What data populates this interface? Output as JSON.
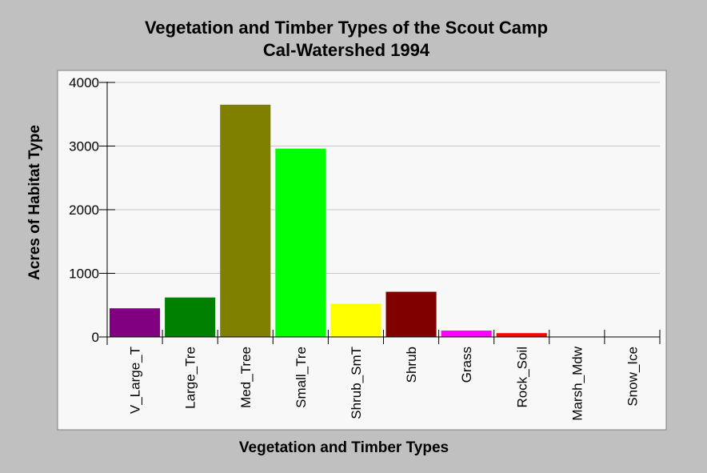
{
  "chart_data": {
    "type": "bar",
    "title": "Vegetation and Timber Types of the Scout Camp",
    "subtitle": "Cal-Watershed 1994",
    "xlabel": "Vegetation and Timber Types",
    "ylabel": "Acres of Habitat Type",
    "ylim": [
      0,
      4000
    ],
    "yticks": [
      0,
      1000,
      2000,
      3000,
      4000
    ],
    "grid": true,
    "categories": [
      "V_Large_T",
      "Large_Tre",
      "Med_Tree",
      "Small_Tre",
      "Shrub_SmT",
      "Shrub",
      "Grass",
      "Rock_Soil",
      "Marsh_Mdw",
      "Snow_Ice"
    ],
    "values": [
      450,
      620,
      3650,
      2960,
      520,
      710,
      100,
      60,
      0,
      0
    ],
    "colors": [
      "#800080",
      "#008000",
      "#808000",
      "#00ff00",
      "#ffff00",
      "#800000",
      "#ff00ff",
      "#ff0000",
      "#c0c0c0",
      "#c0c0c0"
    ]
  }
}
